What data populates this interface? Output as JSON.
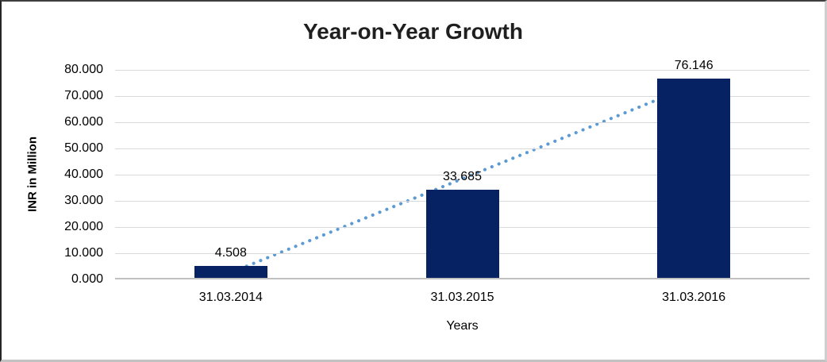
{
  "chart_data": {
    "type": "bar",
    "title": "Year-on-Year Growth",
    "xlabel": "Years",
    "ylabel": "INR in Million",
    "categories": [
      "31.03.2014",
      "31.03.2015",
      "31.03.2016"
    ],
    "values": [
      4.508,
      33.685,
      76.146
    ],
    "data_labels": [
      "4.508",
      "33.685",
      "76.146"
    ],
    "ylim": [
      0,
      80
    ],
    "ytick_step": 10,
    "ytick_labels": [
      "0.000",
      "10.000",
      "20.000",
      "30.000",
      "40.000",
      "50.000",
      "60.000",
      "70.000",
      "80.000"
    ],
    "grid": true,
    "legend_position": "none",
    "bar_color": "#072262",
    "trendline": {
      "type": "linear",
      "style": "dotted",
      "color": "#5B9BD5"
    },
    "gridline_color": "#d9d9d9",
    "axis_line_color": "#c0c0c0",
    "text_color": "#000000",
    "title_color": "#1f1f1f"
  }
}
